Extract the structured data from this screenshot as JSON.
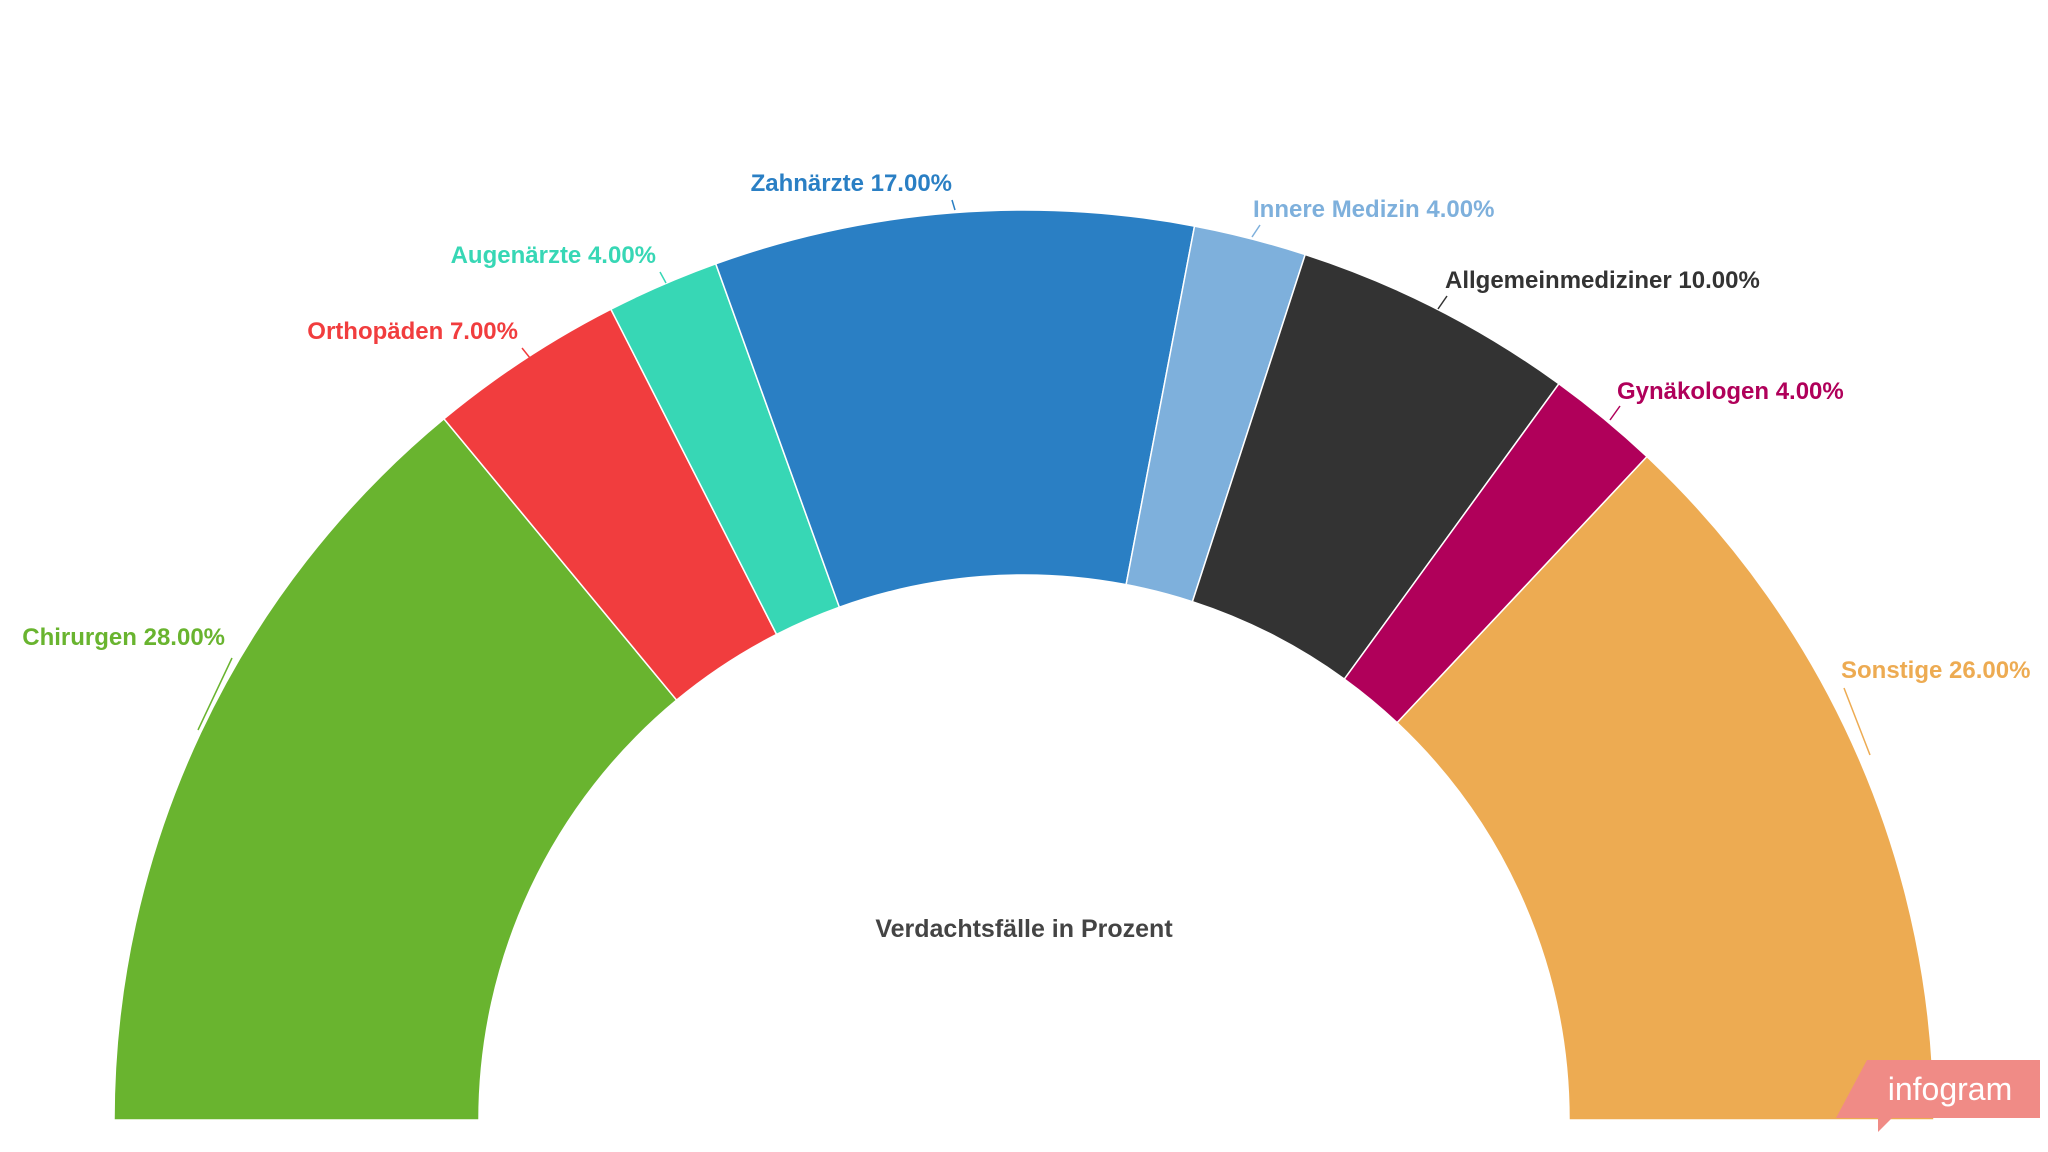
{
  "chart_data": {
    "type": "pie",
    "variant": "semi-donut",
    "center_label": "Verdachtsfälle in Prozent",
    "value_suffix": "%",
    "slices": [
      {
        "label": "Chirurgen",
        "value": 28.0,
        "display": "Chirurgen 28.00%",
        "color": "#69b42f"
      },
      {
        "label": "Orthopäden",
        "value": 7.0,
        "display": "Orthopäden 7.00%",
        "color": "#f13d3e"
      },
      {
        "label": "Augenärzte",
        "value": 4.0,
        "display": "Augenärzte 4.00%",
        "color": "#37d7b5"
      },
      {
        "label": "Zahnärzte",
        "value": 17.0,
        "display": "Zahnärzte 17.00%",
        "color": "#2a7fc4"
      },
      {
        "label": "Innere Medizin",
        "value": 4.0,
        "display": "Innere Medizin 4.00%",
        "color": "#7eb0dc"
      },
      {
        "label": "Allgemeinmediziner",
        "value": 10.0,
        "display": "Allgemeinmediziner 10.00%",
        "color": "#333333"
      },
      {
        "label": "Gynäkologen",
        "value": 4.0,
        "display": "Gynäkologen 4.00%",
        "color": "#b0005a"
      },
      {
        "label": "Sonstige",
        "value": 26.0,
        "display": "Sonstige 26.00%",
        "color": "#edab52"
      }
    ]
  },
  "branding": {
    "text": "infogram",
    "color": "#f08b86"
  }
}
